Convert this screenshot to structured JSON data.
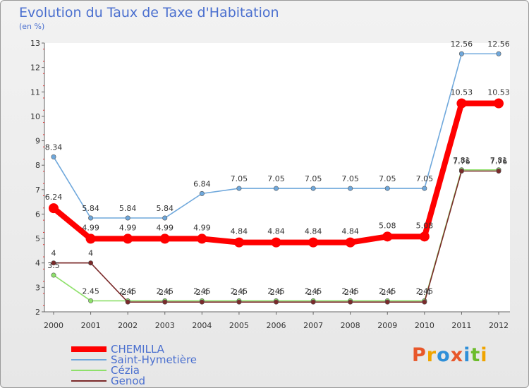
{
  "header": {
    "title": "Evolution du Taux de Taxe d'Habitation",
    "subtitle": "(en %)"
  },
  "logo": {
    "text": "Proxiti",
    "colors": [
      "#e8572a",
      "#f0a400",
      "#2f8fd8",
      "#e8572a",
      "#2f8fd8",
      "#6cbc2b",
      "#f0a400"
    ]
  },
  "chart_data": {
    "type": "line",
    "title": "Evolution du Taux de Taxe d'Habitation",
    "subtitle": "(en %)",
    "x": [
      "2000",
      "2001",
      "2002",
      "2003",
      "2004",
      "2005",
      "2006",
      "2007",
      "2008",
      "2009",
      "2010",
      "2011",
      "2012"
    ],
    "ylim": [
      2,
      13
    ],
    "yticks": [
      2,
      3,
      4,
      5,
      6,
      7,
      8,
      9,
      10,
      11,
      12,
      13
    ],
    "grid": false,
    "legend_position": "bottom-left",
    "series": [
      {
        "name": "CHEMILLA",
        "color": "#ff0000",
        "values": [
          6.24,
          4.99,
          4.99,
          4.99,
          4.99,
          4.84,
          4.84,
          4.84,
          4.84,
          5.08,
          5.08,
          10.53,
          10.53
        ],
        "labels": [
          "6.24",
          "4.99",
          "4.99",
          "4.99",
          "4.99",
          "4.84",
          "4.84",
          "4.84",
          "4.84",
          "5.08",
          "5.08",
          "10.53",
          "10.53"
        ]
      },
      {
        "name": "Saint-Hymetière",
        "color": "#6fa8dc",
        "values": [
          8.34,
          5.84,
          5.84,
          5.84,
          6.84,
          7.05,
          7.05,
          7.05,
          7.05,
          7.05,
          7.05,
          12.56,
          12.56
        ],
        "labels": [
          "8.34",
          "5.84",
          "5.84",
          "5.84",
          "6.84",
          "7.05",
          "7.05",
          "7.05",
          "7.05",
          "7.05",
          "7.05",
          "12.56",
          "12.56"
        ]
      },
      {
        "name": "Cézia",
        "color": "#8ee06a",
        "values": [
          3.5,
          2.45,
          2.45,
          2.45,
          2.45,
          2.45,
          2.45,
          2.45,
          2.45,
          2.45,
          2.45,
          7.81,
          7.81
        ],
        "labels": [
          "3.5",
          "2.45",
          "2.45",
          "2.45",
          "2.45",
          "2.45",
          "2.45",
          "2.45",
          "2.45",
          "2.45",
          "2.45",
          "7.81",
          "7.81"
        ]
      },
      {
        "name": "Genod",
        "color": "#7b2a2a",
        "values": [
          4,
          4,
          2.4,
          2.4,
          2.4,
          2.4,
          2.4,
          2.4,
          2.4,
          2.4,
          2.4,
          7.76,
          7.76
        ],
        "labels": [
          "4",
          "4",
          "2.4",
          "2.4",
          "2.4",
          "2.4",
          "2.4",
          "2.4",
          "2.4",
          "2.4",
          "2.4",
          "7.76",
          "7.76"
        ]
      }
    ]
  }
}
